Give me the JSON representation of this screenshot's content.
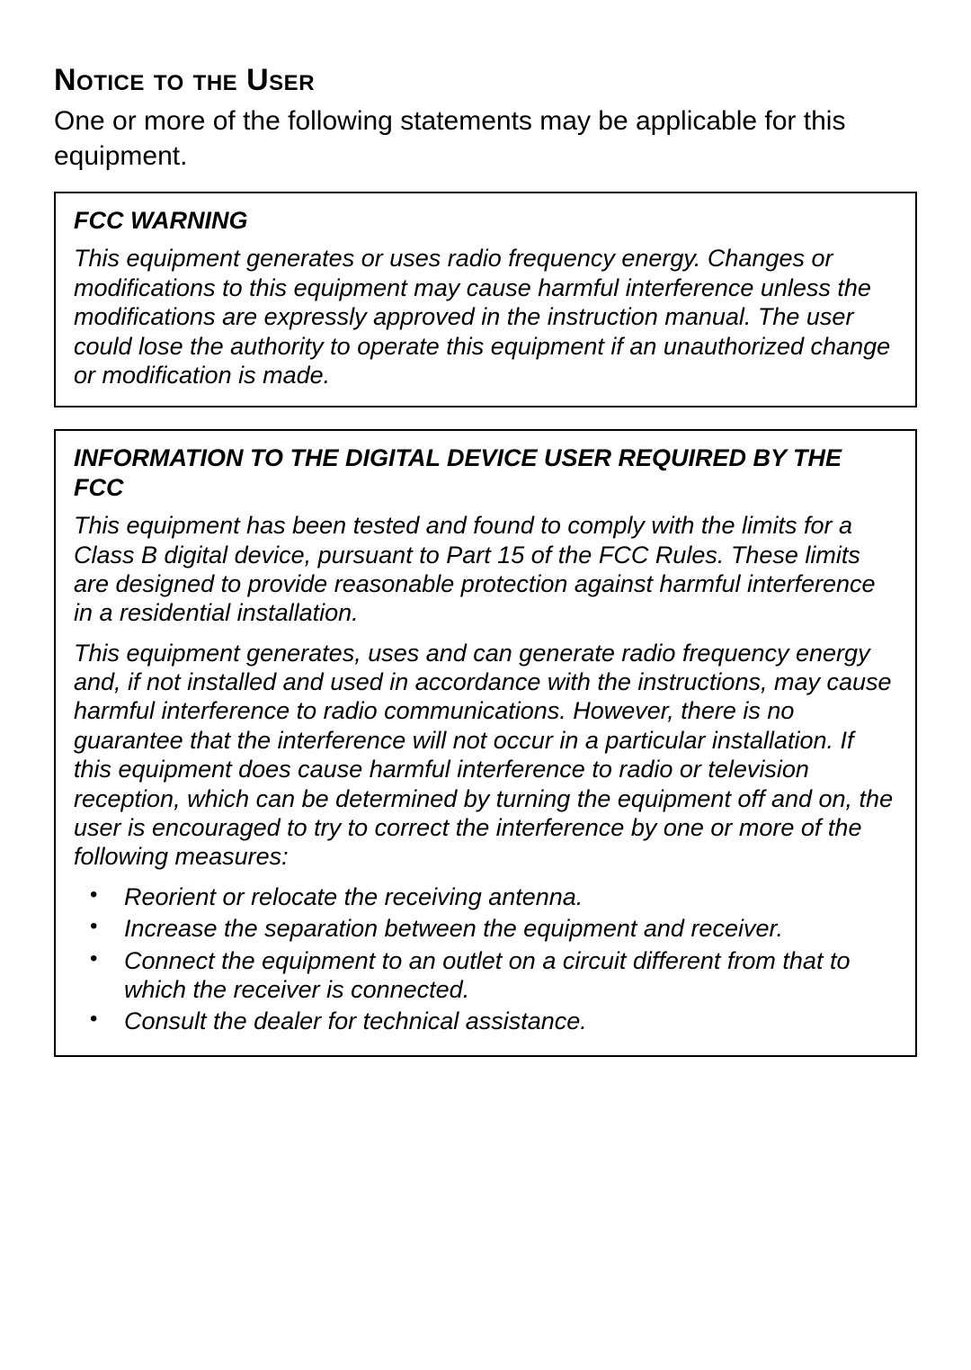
{
  "page": {
    "title": "Notice to the User",
    "intro": "One or more of the following statements may be applicable for this equipment.",
    "background_color": "#ffffff",
    "text_color": "#000000",
    "border_color": "#000000",
    "title_fontsize": 34,
    "body_fontsize": 30,
    "box_fontsize": 27
  },
  "box1": {
    "heading": "FCC WARNING",
    "para1": "This equipment generates or uses radio frequency energy.  Changes or modifications to this equipment may cause harmful interference unless the modifications are expressly approved in the instruction manual.  The user could lose the authority to operate this equipment if an unauthorized change or modification is made."
  },
  "box2": {
    "heading": "INFORMATION TO THE DIGITAL DEVICE USER REQUIRED BY THE FCC",
    "para1": "This equipment has been tested and found to comply with the limits for a Class B digital device, pursuant to Part 15 of the FCC Rules.  These limits are designed to provide reasonable protection against harmful interference in a residential installation.",
    "para2": "This equipment generates, uses and can generate radio frequency energy and, if not installed and used in accordance with the instructions, may cause harmful interference to radio communications.  However, there is no guarantee that the interference will not occur in a particular installation.  If this equipment does cause harmful interference to radio or television reception, which can be determined by turning the equipment off and on, the user is encouraged to try to correct the interference by one or more of the following measures:",
    "bullets": {
      "b1": "Reorient or relocate the receiving antenna.",
      "b2": "Increase the separation between the equipment and receiver.",
      "b3": "Connect the equipment to an outlet on a circuit different from that to which the receiver is connected.",
      "b4": "Consult the dealer for technical assistance."
    }
  }
}
